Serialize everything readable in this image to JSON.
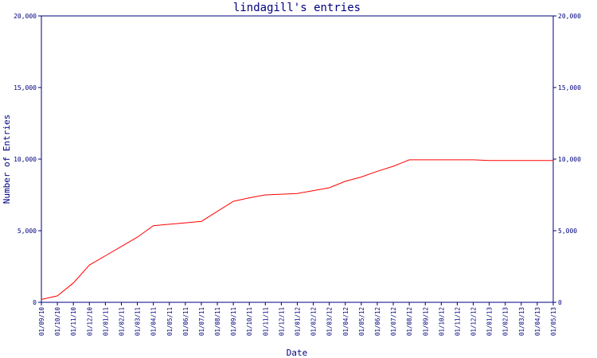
{
  "chart_data": {
    "type": "line",
    "title": "lindagill's entries",
    "xlabel": "Date",
    "ylabel": "Number of Entries",
    "ylim": [
      0,
      20000
    ],
    "y_ticks": [
      0,
      5000,
      10000,
      15000,
      20000
    ],
    "y_tick_labels": [
      "0",
      "5,000",
      "10,000",
      "15,000",
      "20,000"
    ],
    "x_tick_labels": [
      "01/09/10",
      "01/10/10",
      "01/11/10",
      "01/12/10",
      "01/01/11",
      "01/02/11",
      "01/03/11",
      "01/04/11",
      "01/05/11",
      "01/06/11",
      "01/07/11",
      "01/08/11",
      "01/09/11",
      "01/10/11",
      "01/11/11",
      "01/12/11",
      "01/01/12",
      "01/02/12",
      "01/03/12",
      "01/04/12",
      "01/05/12",
      "01/06/12",
      "01/07/12",
      "01/08/12",
      "01/09/12",
      "01/10/12",
      "01/11/12",
      "01/12/12",
      "01/01/13",
      "01/02/13",
      "01/03/13",
      "01/04/13",
      "01/05/13"
    ],
    "grid": false,
    "axis_color": "#000080",
    "series": [
      {
        "color": "#ff0000",
        "x": [
          "2010-09-01",
          "2010-10-01",
          "2010-11-01",
          "2010-12-01",
          "2011-01-01",
          "2011-02-01",
          "2011-03-01",
          "2011-04-01",
          "2011-05-01",
          "2011-06-01",
          "2011-07-01",
          "2011-08-01",
          "2011-09-01",
          "2011-10-01",
          "2011-11-01",
          "2011-12-01",
          "2012-01-01",
          "2012-02-01",
          "2012-03-01",
          "2012-04-01",
          "2012-05-01",
          "2012-06-01",
          "2012-07-01",
          "2012-08-01",
          "2012-09-01",
          "2012-10-01",
          "2012-11-01",
          "2012-12-01",
          "2013-01-01",
          "2013-02-01",
          "2013-03-01",
          "2013-04-01",
          "2013-05-01"
        ],
        "values": [
          200,
          450,
          1350,
          2600,
          3250,
          3900,
          4550,
          5350,
          5450,
          5550,
          5650,
          6350,
          7050,
          7300,
          7500,
          7550,
          7600,
          7800,
          8000,
          8450,
          8750,
          9150,
          9500,
          9950,
          9950,
          9950,
          9950,
          9950,
          9900,
          9900,
          9900,
          9900,
          9900
        ]
      }
    ]
  }
}
